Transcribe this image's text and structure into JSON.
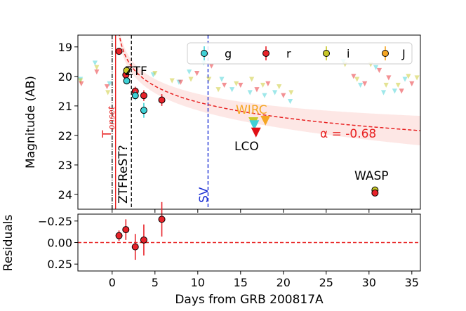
{
  "colors": {
    "g": "#3fd1d6",
    "r": "#e8232a",
    "i": "#c9c828",
    "J": "#f5a623",
    "fit": "#e82222",
    "band": "#fbd3cf",
    "sv": "#1c2fd4",
    "black": "#111111",
    "red_marker": "#e00f15"
  },
  "chart_data": [
    {
      "type": "scatter",
      "name": "light-curve",
      "xlim": [
        -4,
        36
      ],
      "ylim": [
        18.6,
        24.5
      ],
      "y_inverted": true,
      "ylabel": "Magnitude (AB)",
      "yticks": [
        19,
        20,
        21,
        22,
        23,
        24
      ],
      "xticks": [
        0,
        5,
        10,
        15,
        20,
        25,
        30,
        35
      ],
      "legend": {
        "placement": "top-right",
        "entries": [
          {
            "label": "g",
            "color_key": "g"
          },
          {
            "label": "r",
            "color_key": "r"
          },
          {
            "label": "i",
            "color_key": "i"
          },
          {
            "label": "J",
            "color_key": "J"
          }
        ]
      },
      "detections": [
        {
          "band": "r",
          "x": 0.8,
          "y": 19.15,
          "err": 0.12
        },
        {
          "band": "r",
          "x": 1.6,
          "y": 19.95,
          "err": 0.12
        },
        {
          "band": "i",
          "x": 1.7,
          "y": 19.8,
          "err": 0.12
        },
        {
          "band": "g",
          "x": 1.7,
          "y": 20.15,
          "err": 0.12
        },
        {
          "band": "r",
          "x": 2.7,
          "y": 20.5,
          "err": 0.15
        },
        {
          "band": "g",
          "x": 2.7,
          "y": 20.65,
          "err": 0.15
        },
        {
          "band": "r",
          "x": 3.7,
          "y": 20.65,
          "err": 0.18
        },
        {
          "band": "g",
          "x": 3.7,
          "y": 21.15,
          "err": 0.25
        },
        {
          "band": "r",
          "x": 5.8,
          "y": 20.8,
          "err": 0.2
        },
        {
          "band": "i",
          "x": 30.7,
          "y": 23.85,
          "err": 0.1
        },
        {
          "band": "r",
          "x": 30.7,
          "y": 23.95,
          "err": 0.1
        }
      ],
      "upper_limits": [
        {
          "band": "g",
          "x": -3.7,
          "y": 20.1
        },
        {
          "band": "i",
          "x": -3.7,
          "y": 20.15
        },
        {
          "band": "r",
          "x": -3.6,
          "y": 20.25
        },
        {
          "band": "g",
          "x": -2.0,
          "y": 19.55
        },
        {
          "band": "i",
          "x": -1.8,
          "y": 19.7
        },
        {
          "band": "r",
          "x": -1.8,
          "y": 19.85
        },
        {
          "band": "r",
          "x": -0.6,
          "y": 20.35
        },
        {
          "band": "i",
          "x": -0.5,
          "y": 20.55
        },
        {
          "band": "g",
          "x": -0.3,
          "y": 20.25
        },
        {
          "band": "g",
          "x": 4.8,
          "y": 19.95
        },
        {
          "band": "i",
          "x": 5.0,
          "y": 19.9
        },
        {
          "band": "i",
          "x": 7.0,
          "y": 20.15
        },
        {
          "band": "g",
          "x": 7.8,
          "y": 20.2
        },
        {
          "band": "r",
          "x": 8.0,
          "y": 20.2
        },
        {
          "band": "g",
          "x": 9.0,
          "y": 19.85
        },
        {
          "band": "i",
          "x": 9.2,
          "y": 20.1
        },
        {
          "band": "r",
          "x": 9.9,
          "y": 19.9
        },
        {
          "band": "g",
          "x": 10.7,
          "y": 19.55
        },
        {
          "band": "i",
          "x": 11.3,
          "y": 20.1
        },
        {
          "band": "r",
          "x": 11.6,
          "y": 19.65
        },
        {
          "band": "i",
          "x": 12.4,
          "y": 20.45
        },
        {
          "band": "g",
          "x": 12.8,
          "y": 20.1
        },
        {
          "band": "r",
          "x": 13.1,
          "y": 20.3
        },
        {
          "band": "g",
          "x": 14.0,
          "y": 20.45
        },
        {
          "band": "i",
          "x": 14.5,
          "y": 20.25
        },
        {
          "band": "r",
          "x": 15.0,
          "y": 20.3
        },
        {
          "band": "g",
          "x": 16.1,
          "y": 20.55
        },
        {
          "band": "i",
          "x": 16.3,
          "y": 20.1
        },
        {
          "band": "r",
          "x": 16.9,
          "y": 20.45
        },
        {
          "band": "i",
          "x": 17.6,
          "y": 20.3
        },
        {
          "band": "g",
          "x": 17.8,
          "y": 20.65
        },
        {
          "band": "r",
          "x": 18.2,
          "y": 20.25
        },
        {
          "band": "g",
          "x": 19.0,
          "y": 20.55
        },
        {
          "band": "i",
          "x": 19.5,
          "y": 20.35
        },
        {
          "band": "r",
          "x": 20.0,
          "y": 20.65
        },
        {
          "band": "g",
          "x": 20.8,
          "y": 20.85
        },
        {
          "band": "i",
          "x": 20.9,
          "y": 20.55
        },
        {
          "band": "g",
          "x": 27.0,
          "y": 19.5
        },
        {
          "band": "i",
          "x": 27.2,
          "y": 19.6
        },
        {
          "band": "r",
          "x": 28.2,
          "y": 20.0
        },
        {
          "band": "i",
          "x": 28.6,
          "y": 20.1
        },
        {
          "band": "g",
          "x": 29.0,
          "y": 20.3
        },
        {
          "band": "r",
          "x": 29.5,
          "y": 20.25
        },
        {
          "band": "i",
          "x": 30.2,
          "y": 19.6
        },
        {
          "band": "g",
          "x": 30.8,
          "y": 19.7
        },
        {
          "band": "r",
          "x": 31.2,
          "y": 19.8
        },
        {
          "band": "g",
          "x": 31.7,
          "y": 20.55
        },
        {
          "band": "i",
          "x": 32.0,
          "y": 20.3
        },
        {
          "band": "r",
          "x": 32.3,
          "y": 20.05
        },
        {
          "band": "g",
          "x": 33.0,
          "y": 20.5
        },
        {
          "band": "i",
          "x": 33.4,
          "y": 20.3
        },
        {
          "band": "r",
          "x": 33.8,
          "y": 20.5
        },
        {
          "band": "g",
          "x": 34.2,
          "y": 20.1
        },
        {
          "band": "i",
          "x": 34.6,
          "y": 20.0
        },
        {
          "band": "r",
          "x": 35.0,
          "y": 20.25
        },
        {
          "band": "i",
          "x": 35.6,
          "y": 20.05
        }
      ],
      "wirc_limits": [
        {
          "band": "i",
          "x": 16.5,
          "y": 21.55
        },
        {
          "band": "g",
          "x": 16.6,
          "y": 21.65
        },
        {
          "band": "J",
          "x": 17.9,
          "y": 21.5
        },
        {
          "band": "r",
          "x": 16.8,
          "y": 21.9
        }
      ],
      "fit": {
        "t0": 0.4,
        "alpha": -0.68,
        "m_at_1day": 19.2,
        "band_width_min": 0.2,
        "band_width_max": 0.5
      },
      "vertical_lines": [
        {
          "x": 0.0,
          "style": "dashdot",
          "color_key": "black"
        },
        {
          "x": 0.4,
          "style": "solid",
          "color_key": "fit"
        },
        {
          "x": 2.25,
          "style": "dashed",
          "color_key": "black"
        },
        {
          "x": 11.2,
          "style": "dashed",
          "color_key": "sv"
        }
      ],
      "annotations": {
        "ztf": "ZTF",
        "ztfrest": "ZTFReST?",
        "sv": "SV",
        "t_onset_main": "T",
        "t_onset_sub": "onset",
        "wirc": "WIRC",
        "lco": "LCO",
        "wasp": "WASP",
        "alpha_label": "α = -0.68"
      }
    },
    {
      "type": "scatter",
      "name": "residuals",
      "xlim": [
        -4,
        36
      ],
      "ylim": [
        -0.33,
        0.33
      ],
      "y_inverted": true,
      "ylabel": "Residuals",
      "yticks": [
        -0.25,
        0.0,
        0.25
      ],
      "ytick_labels": [
        "−0.25",
        "0.00",
        "0.25"
      ],
      "xticks": [
        0,
        5,
        10,
        15,
        20,
        25,
        30,
        35
      ],
      "xtick_labels": [
        "0",
        "5",
        "10",
        "15",
        "20",
        "25",
        "30",
        "35"
      ],
      "xlabel": "Days from GRB 200817A",
      "points": [
        {
          "x": 0.8,
          "y": -0.08,
          "err": 0.06
        },
        {
          "x": 1.6,
          "y": -0.15,
          "err": 0.12
        },
        {
          "x": 2.7,
          "y": 0.05,
          "err": 0.15
        },
        {
          "x": 3.7,
          "y": -0.03,
          "err": 0.18
        },
        {
          "x": 5.8,
          "y": -0.27,
          "err": 0.2
        }
      ],
      "zero_line": 0.0
    }
  ]
}
